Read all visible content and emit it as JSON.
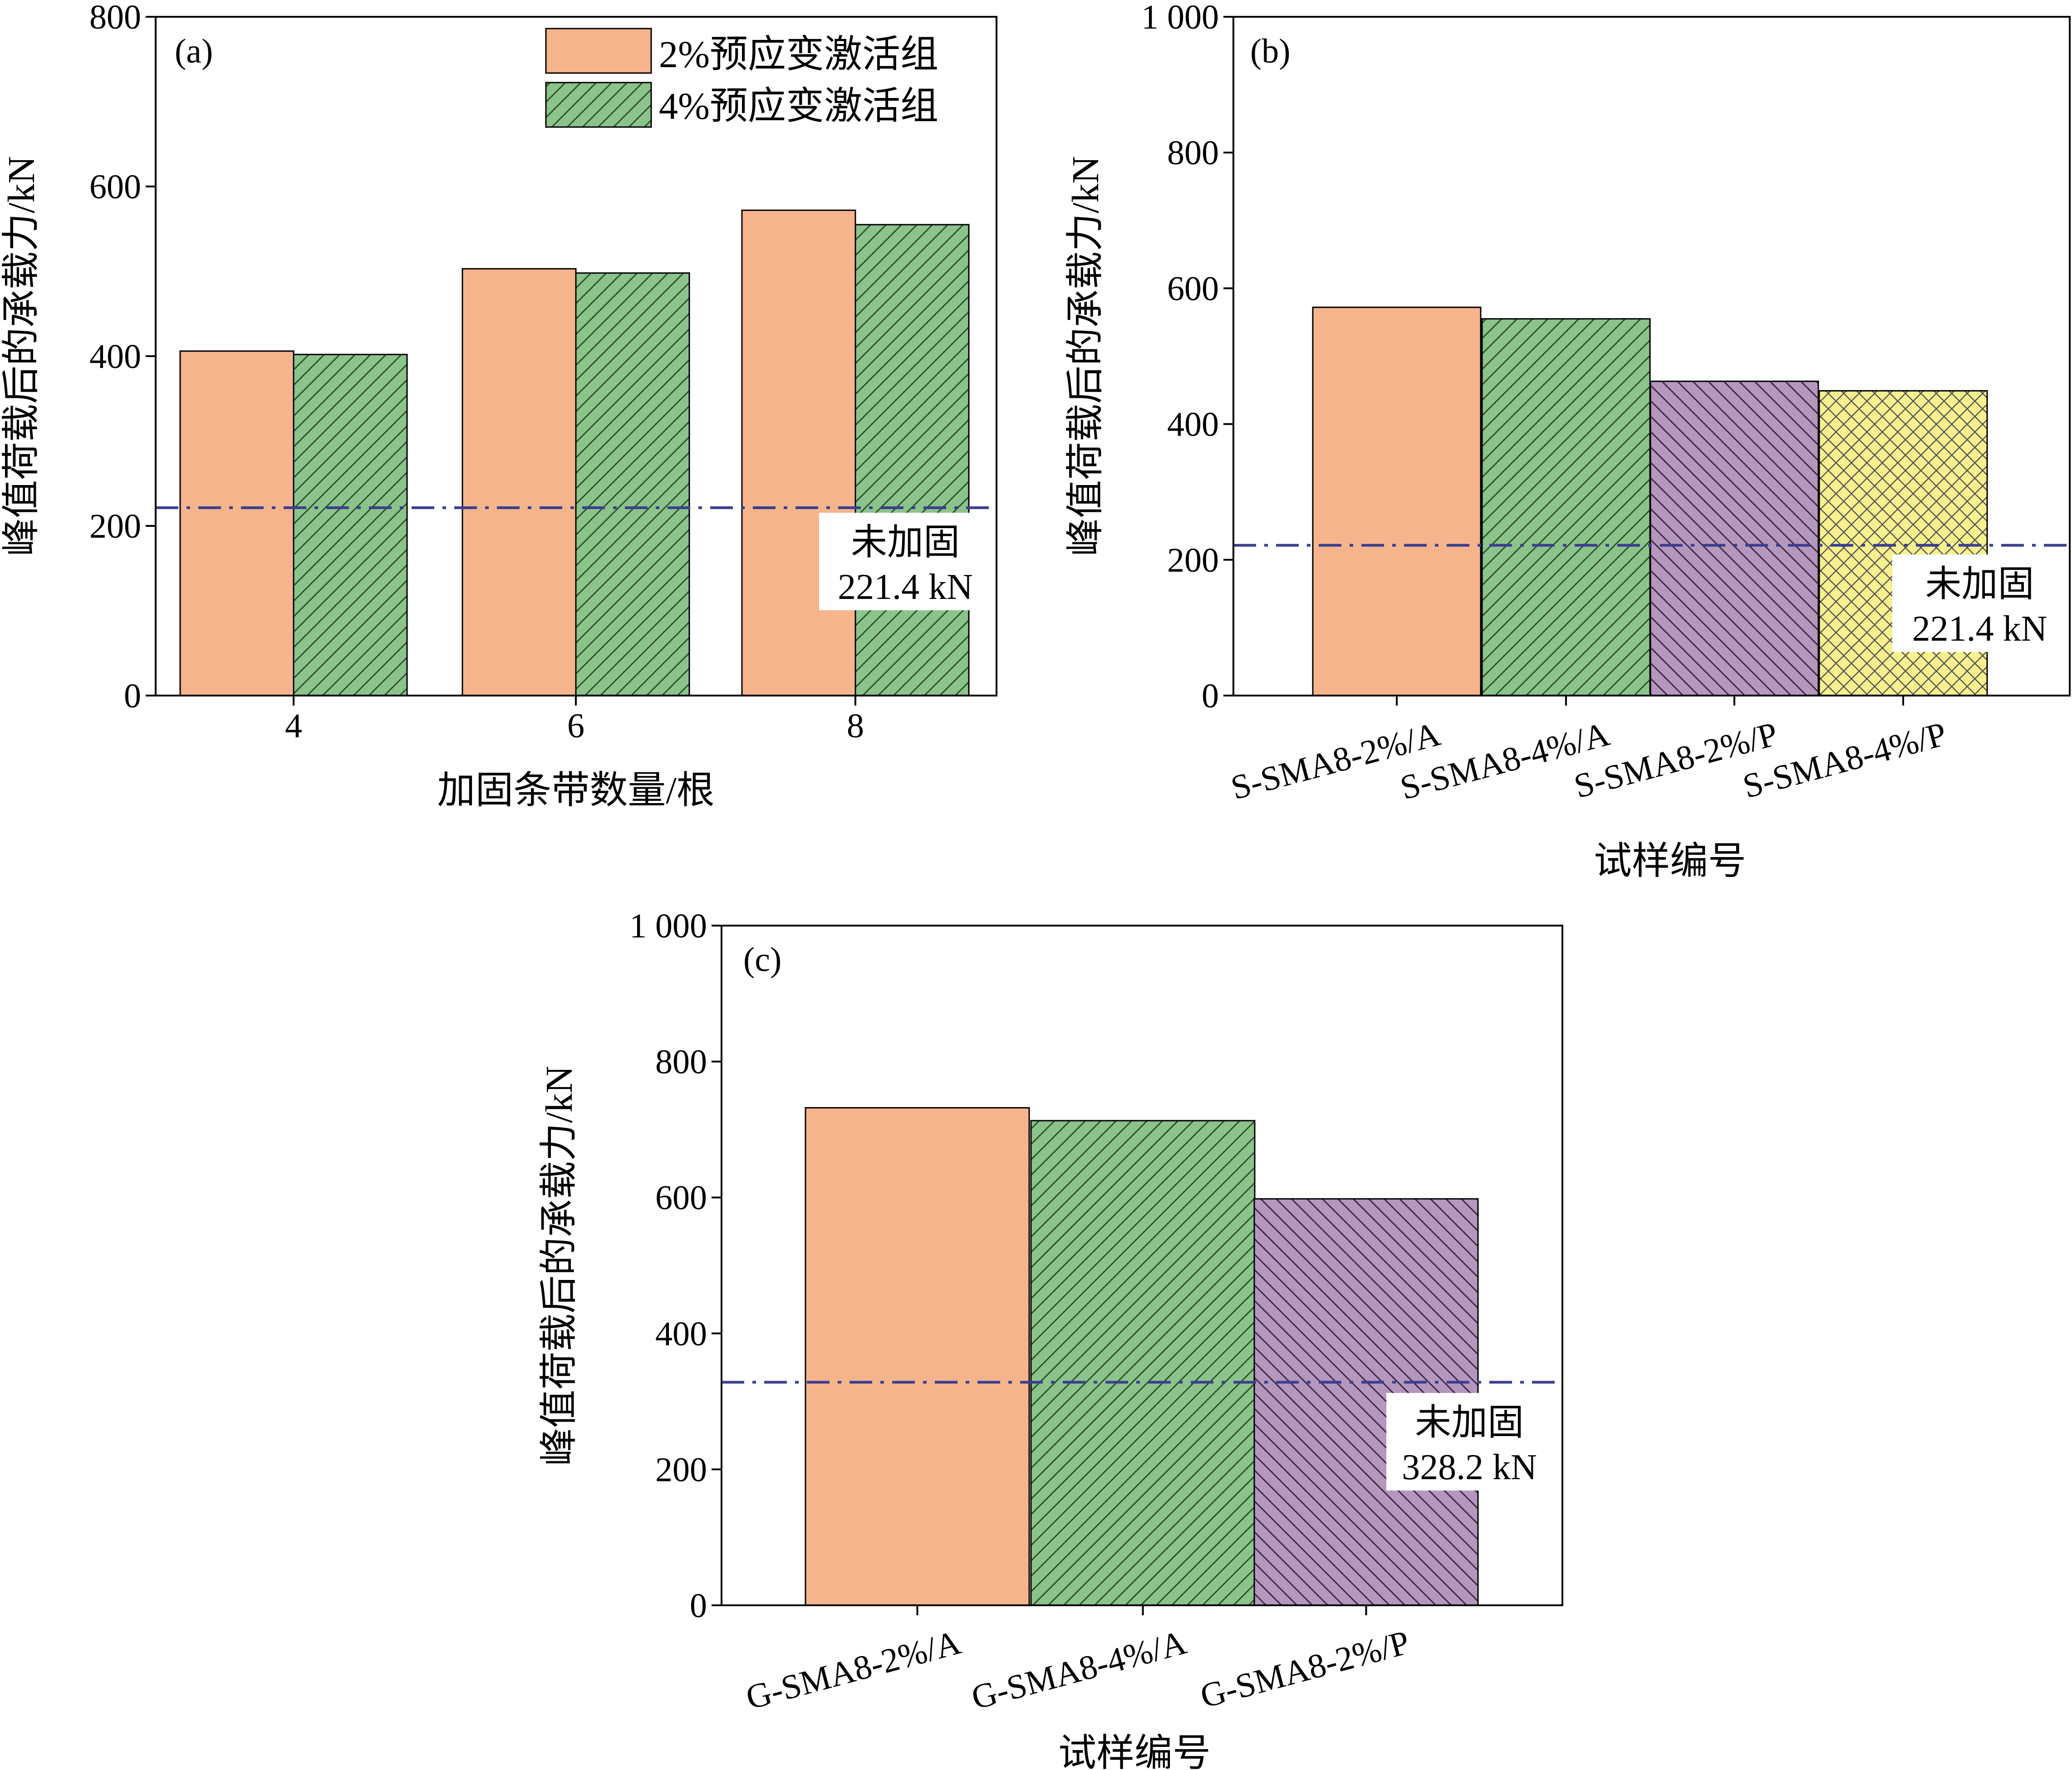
{
  "colors": {
    "orange": "#f6b48d",
    "green": "#8bc48a",
    "purple": "#b596bd",
    "yellow": "#f7f08e",
    "refline": "#3b3f8f"
  },
  "legend": {
    "items": [
      {
        "label": "2%预应变激活组",
        "color": "#f6b48d",
        "pattern": "solid"
      },
      {
        "label": "4%预应变激活组",
        "color": "#8bc48a",
        "pattern": "diagonal"
      }
    ],
    "placement": "top-right of panel (a)"
  },
  "chart_data": [
    {
      "type": "bar",
      "panel_label": "(a)",
      "xlabel": "加固条带数量/根",
      "ylabel": "峰值荷载后的承载力/kN",
      "ylim": [
        0,
        800
      ],
      "yticks": [
        0,
        200,
        400,
        600,
        800
      ],
      "ytick_labels": [
        "0",
        "200",
        "400",
        "600",
        "800"
      ],
      "categories": [
        "4",
        "6",
        "8"
      ],
      "series": [
        {
          "name": "2%预应变激活组",
          "values": [
            406,
            503,
            572
          ],
          "color": "#f6b48d",
          "pattern": "solid"
        },
        {
          "name": "4%预应变激活组",
          "values": [
            402,
            498,
            555
          ],
          "color": "#8bc48a",
          "pattern": "diagonal"
        }
      ],
      "reference_line": {
        "value": 221.4,
        "label_line1": "未加固",
        "label_line2": "221.4 kN"
      }
    },
    {
      "type": "bar",
      "panel_label": "(b)",
      "xlabel": "试样编号",
      "ylabel": "峰值荷载后的承载力/kN",
      "ylim": [
        0,
        1000
      ],
      "yticks": [
        0,
        200,
        400,
        600,
        800,
        1000
      ],
      "ytick_labels": [
        "0",
        "200",
        "400",
        "600",
        "800",
        "1 000"
      ],
      "categories": [
        "S-SMA8-2%/A",
        "S-SMA8-4%/A",
        "S-SMA8-2%/P",
        "S-SMA8-4%/P"
      ],
      "values": [
        572,
        555,
        463,
        449
      ],
      "bar_colors": [
        "#f6b48d",
        "#8bc48a",
        "#b596bd",
        "#f7f08e"
      ],
      "bar_patterns": [
        "solid",
        "diagonal",
        "backdiagonal",
        "crosshatch"
      ],
      "reference_line": {
        "value": 221.4,
        "label_line1": "未加固",
        "label_line2": "221.4 kN"
      }
    },
    {
      "type": "bar",
      "panel_label": "(c)",
      "xlabel": "试样编号",
      "ylabel": "峰值荷载后的承载力/kN",
      "ylim": [
        0,
        1000
      ],
      "yticks": [
        0,
        200,
        400,
        600,
        800,
        1000
      ],
      "ytick_labels": [
        "0",
        "200",
        "400",
        "600",
        "800",
        "1 000"
      ],
      "categories": [
        "G-SMA8-2%/A",
        "G-SMA8-4%/A",
        "G-SMA8-2%/P"
      ],
      "values": [
        732,
        713,
        598
      ],
      "bar_colors": [
        "#f6b48d",
        "#8bc48a",
        "#b596bd"
      ],
      "bar_patterns": [
        "solid",
        "diagonal",
        "backdiagonal"
      ],
      "reference_line": {
        "value": 328.2,
        "label_line1": "未加固",
        "label_line2": "328.2 kN"
      }
    }
  ]
}
